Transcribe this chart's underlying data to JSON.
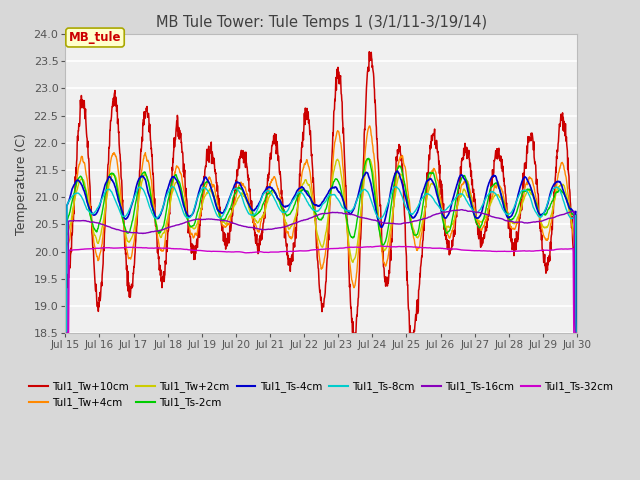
{
  "title": "MB Tule Tower: Tule Temps 1 (3/1/11-3/19/14)",
  "ylabel": "Temperature (C)",
  "ylim": [
    18.5,
    24.0
  ],
  "yticks": [
    18.5,
    19.0,
    19.5,
    20.0,
    20.5,
    21.0,
    21.5,
    22.0,
    22.5,
    23.0,
    23.5,
    24.0
  ],
  "xtick_labels": [
    "Jul 15",
    "Jul 16",
    "Jul 17",
    "Jul 18",
    "Jul 19",
    "Jul 20",
    "Jul 21",
    "Jul 22",
    "Jul 23",
    "Jul 24",
    "Jul 25",
    "Jul 26",
    "Jul 27",
    "Jul 28",
    "Jul 29",
    "Jul 30"
  ],
  "series_colors": {
    "Tul1_Tw+10cm": "#cc0000",
    "Tul1_Tw+4cm": "#ff8800",
    "Tul1_Tw+2cm": "#cccc00",
    "Tul1_Ts-2cm": "#00cc00",
    "Tul1_Ts-4cm": "#0000cc",
    "Tul1_Ts-8cm": "#00cccc",
    "Tul1_Ts-16cm": "#8800bb",
    "Tul1_Ts-32cm": "#cc00cc"
  },
  "bg_color": "#d8d8d8",
  "plot_bg_color": "#f0f0f0",
  "grid_color": "#ffffff",
  "title_color": "#404040",
  "annotation_text": "MB_tule",
  "annotation_color": "#cc0000",
  "annotation_bg": "#ffffcc",
  "annotation_border": "#aaa800"
}
